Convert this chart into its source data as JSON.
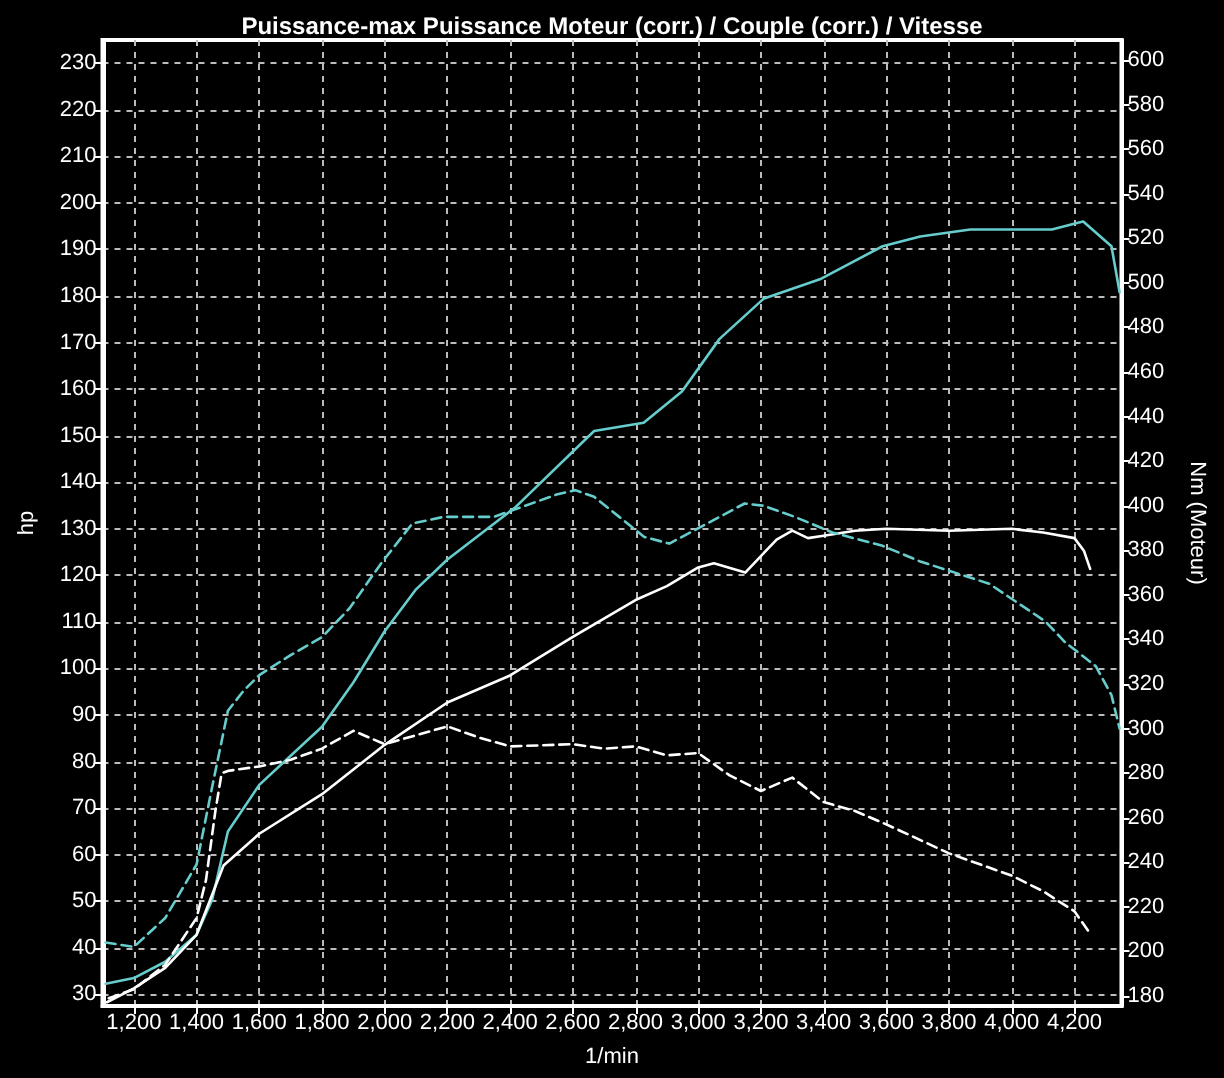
{
  "chart_data": {
    "type": "line",
    "title": "Puissance-max Puissance Moteur (corr.) / Couple (corr.) / Vitesse",
    "xlabel": "1/min",
    "ylabel": "hp",
    "y2label": "Nm (Moteur)",
    "xlim": [
      1100,
      4350
    ],
    "xticks": [
      {
        "value": 1200,
        "label": "1,200"
      },
      {
        "value": 1400,
        "label": "1,400"
      },
      {
        "value": 1600,
        "label": "1,600"
      },
      {
        "value": 1800,
        "label": "1,800"
      },
      {
        "value": 2000,
        "label": "2,000"
      },
      {
        "value": 2200,
        "label": "2,200"
      },
      {
        "value": 2400,
        "label": "2,400"
      },
      {
        "value": 2600,
        "label": "2,600"
      },
      {
        "value": 2800,
        "label": "2,800"
      },
      {
        "value": 3000,
        "label": "3,000"
      },
      {
        "value": 3200,
        "label": "3,200"
      },
      {
        "value": 3400,
        "label": "3,400"
      },
      {
        "value": 3600,
        "label": "3,600"
      },
      {
        "value": 3800,
        "label": "3,800"
      },
      {
        "value": 4000,
        "label": "4,000"
      },
      {
        "value": 4200,
        "label": "4,200"
      }
    ],
    "ylim": [
      27.5,
      235
    ],
    "yticks": [
      30,
      40,
      50,
      60,
      70,
      80,
      90,
      100,
      110,
      120,
      130,
      140,
      150,
      160,
      170,
      180,
      190,
      200,
      210,
      220,
      230
    ],
    "y2lim": [
      175.5,
      609
    ],
    "y2ticks": [
      180,
      200,
      220,
      240,
      260,
      280,
      300,
      320,
      340,
      360,
      380,
      400,
      420,
      440,
      460,
      480,
      500,
      520,
      540,
      560,
      580,
      600
    ],
    "grid": true,
    "marker": "none",
    "series": [
      {
        "color": "#66cccc",
        "line_style": "solid",
        "x": [
          1110,
          1200,
          1300,
          1400,
          1450,
          1500,
          1600,
          1800,
          1900,
          2000,
          2100,
          2200,
          2418,
          2668,
          2826,
          2948,
          3068,
          3208,
          3388,
          3588,
          3708,
          3868,
          4128,
          4208,
          4228,
          4318,
          4344
        ],
        "values": [
          32.3,
          33.5,
          37,
          42.8,
          50.4,
          65,
          75,
          87.5,
          97,
          108,
          117,
          123.4,
          134.7,
          151,
          152.8,
          159.5,
          170.8,
          179.4,
          183.6,
          190.7,
          192.8,
          194.3,
          194.3,
          195.7,
          196,
          190.7,
          180.8
        ]
      },
      {
        "color": "#ffffff",
        "line_style": "solid",
        "x": [
          1114,
          1200,
          1300,
          1400,
          1486,
          1600,
          1800,
          2000,
          2200,
          2400,
          2600,
          2800,
          2900,
          3000,
          3050,
          3150,
          3250,
          3300,
          3350,
          3400,
          3500,
          3600,
          3800,
          4000,
          4100,
          4200,
          4230,
          4250
        ],
        "values": [
          28.3,
          31.3,
          35.7,
          42.8,
          57.7,
          64.5,
          73,
          83.6,
          92.7,
          98.5,
          106.8,
          114.7,
          117.7,
          121.7,
          122.6,
          120.6,
          127.7,
          129.6,
          128,
          128.5,
          129.6,
          130,
          129.6,
          130,
          129.2,
          128,
          125.3,
          121.4
        ]
      },
      {
        "color": "#66cccc",
        "line_style": "dashed",
        "axis": "y2",
        "x": [
          1110,
          1200,
          1300,
          1400,
          1450,
          1500,
          1550,
          1600,
          1700,
          1800,
          1888,
          1988,
          2088,
          2188,
          2348,
          2448,
          2548,
          2608,
          2668,
          2748,
          2828,
          2908,
          3028,
          3148,
          3208,
          3308,
          3428,
          3588,
          3708,
          3928,
          4108,
          4168,
          4268,
          4318,
          4344
        ],
        "values": [
          204,
          202,
          215,
          239,
          274,
          308,
          317,
          324,
          333,
          341,
          354,
          374,
          392,
          395,
          395,
          400,
          405,
          407,
          404,
          395,
          386,
          383,
          392,
          401,
          400,
          395,
          388,
          382,
          375,
          365,
          348,
          339,
          328,
          315,
          300
        ]
      },
      {
        "color": "#ffffff",
        "line_style": "dashed",
        "axis": "y2",
        "x": [
          1120,
          1200,
          1300,
          1400,
          1430,
          1460,
          1480,
          1500,
          1600,
          1700,
          1800,
          1900,
          2000,
          2100,
          2200,
          2300,
          2400,
          2600,
          2700,
          2800,
          2900,
          3000,
          3100,
          3200,
          3300,
          3400,
          3500,
          3600,
          3800,
          4000,
          4100,
          4200,
          4250
        ],
        "values": [
          179,
          183,
          194,
          215,
          232,
          263,
          280,
          281,
          283,
          286,
          291,
          299,
          293,
          297,
          301,
          296,
          292,
          293,
          291,
          292,
          288,
          289,
          279,
          272,
          278,
          267,
          263,
          257,
          244,
          234,
          227,
          218,
          208
        ]
      }
    ]
  }
}
